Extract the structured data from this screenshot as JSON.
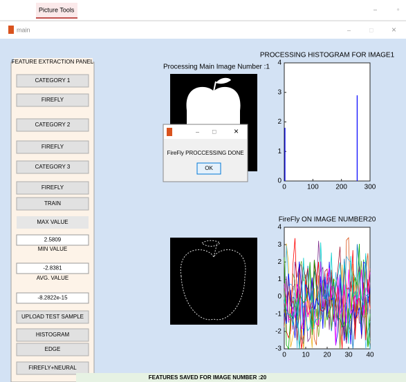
{
  "ribbon": {
    "tab": "Picture Tools"
  },
  "window": {
    "title": "main"
  },
  "panel": {
    "title": "FEATURE EXTRACTION PANEL",
    "items": [
      {
        "kind": "button",
        "label": "CATEGORY 1"
      },
      {
        "kind": "button",
        "label": "FIREFLY"
      },
      {
        "kind": "button",
        "label": "CATEGORY 2"
      },
      {
        "kind": "button",
        "label": "FIREFLY"
      },
      {
        "kind": "button",
        "label": "CATEGORY 3"
      },
      {
        "kind": "button",
        "label": "FIREFLY",
        "focused": true
      },
      {
        "kind": "button",
        "label": "TRAIN"
      },
      {
        "kind": "label",
        "label": "MAX VALUE"
      },
      {
        "kind": "field",
        "label": "2.5809"
      },
      {
        "kind": "label",
        "label": "MIN VALUE"
      },
      {
        "kind": "field",
        "label": "-2.8381"
      },
      {
        "kind": "label",
        "label": "AVG. VALUE"
      },
      {
        "kind": "field",
        "label": "-8.2822e-15"
      },
      {
        "kind": "button",
        "label": "UPLOAD TEST SAMPLE"
      },
      {
        "kind": "button",
        "label": "HISTOGRAM"
      },
      {
        "kind": "button",
        "label": "EDGE"
      },
      {
        "kind": "button",
        "label": "FIREFLY+NEURAL"
      }
    ]
  },
  "image1": {
    "caption": "Processing Main Image Number :1"
  },
  "histogram": {
    "title": "PROCESSING HISTOGRAM FOR IMAGE1",
    "color": "#0000ff",
    "xlim": [
      0,
      300
    ],
    "ylim": [
      0,
      4
    ],
    "xticks": [
      0,
      100,
      200,
      300
    ],
    "yticks": [
      0,
      1,
      2,
      3,
      4
    ],
    "bars": [
      {
        "x": 0,
        "value": 1.8
      },
      {
        "x": 255,
        "value": 2.9
      }
    ]
  },
  "dialog": {
    "message": "FireFly PROCCESSING DONE",
    "button": "OK"
  },
  "plot2": {
    "title": "FireFly ON IMAGE NUMBER20",
    "xlim": [
      0,
      40
    ],
    "ylim": [
      -3,
      4
    ],
    "xticks": [
      0,
      10,
      20,
      30,
      40
    ],
    "yticks": [
      -3,
      -2,
      -1,
      0,
      1,
      2,
      3,
      4
    ]
  },
  "status": "FEATURES SAVED FOR IMAGE NUMBER :20"
}
